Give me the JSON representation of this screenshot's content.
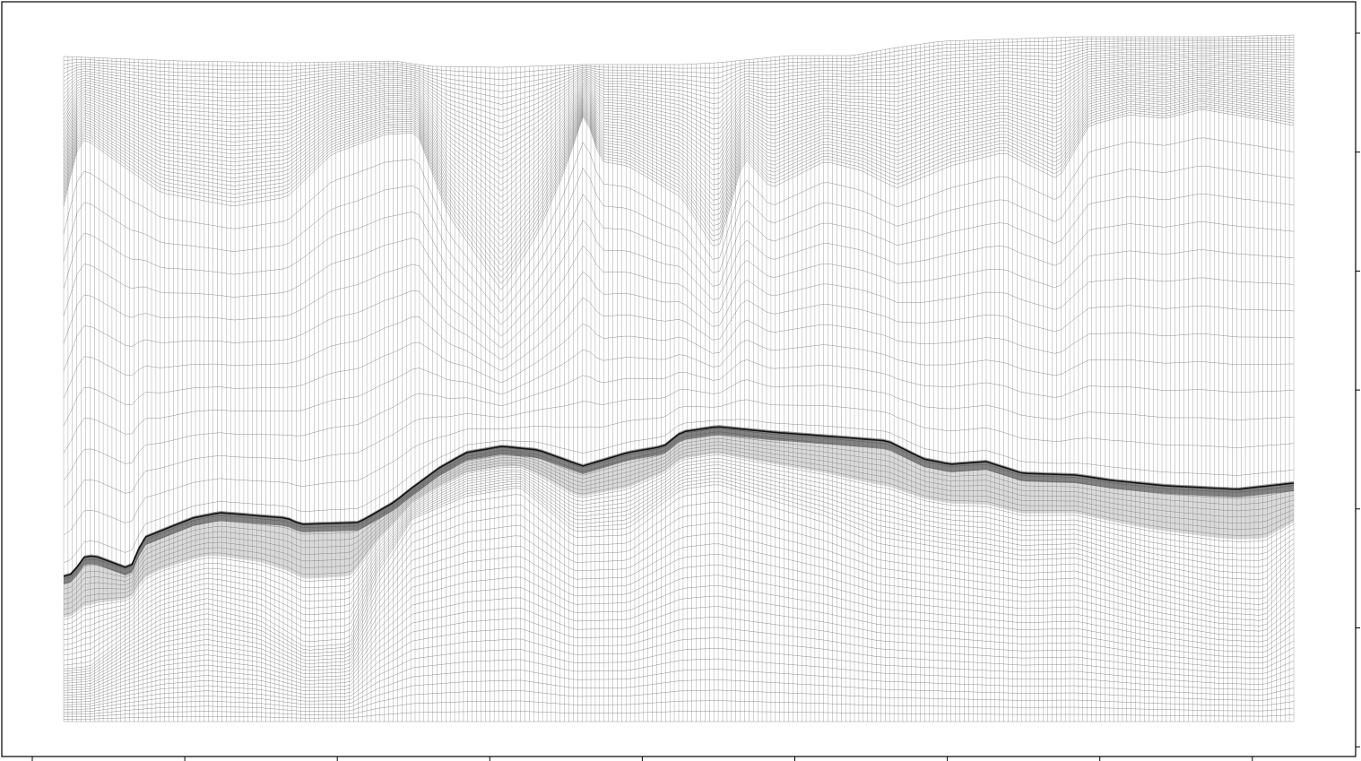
{
  "figure": {
    "kind": "curvilinear mesh",
    "colors": {
      "background": "#ffffff",
      "frame": "#000000",
      "mesh": "#555555",
      "interface": "#111111"
    },
    "x_tick_count": 9,
    "y_tick_count": 7,
    "mesh_columns": 280,
    "mesh_rows": 90
  },
  "chart_data": {
    "type": "mesh",
    "title": "",
    "xlabel": "",
    "ylabel": "",
    "x_tick_labels": [],
    "y_tick_labels": [],
    "grid": false
  }
}
